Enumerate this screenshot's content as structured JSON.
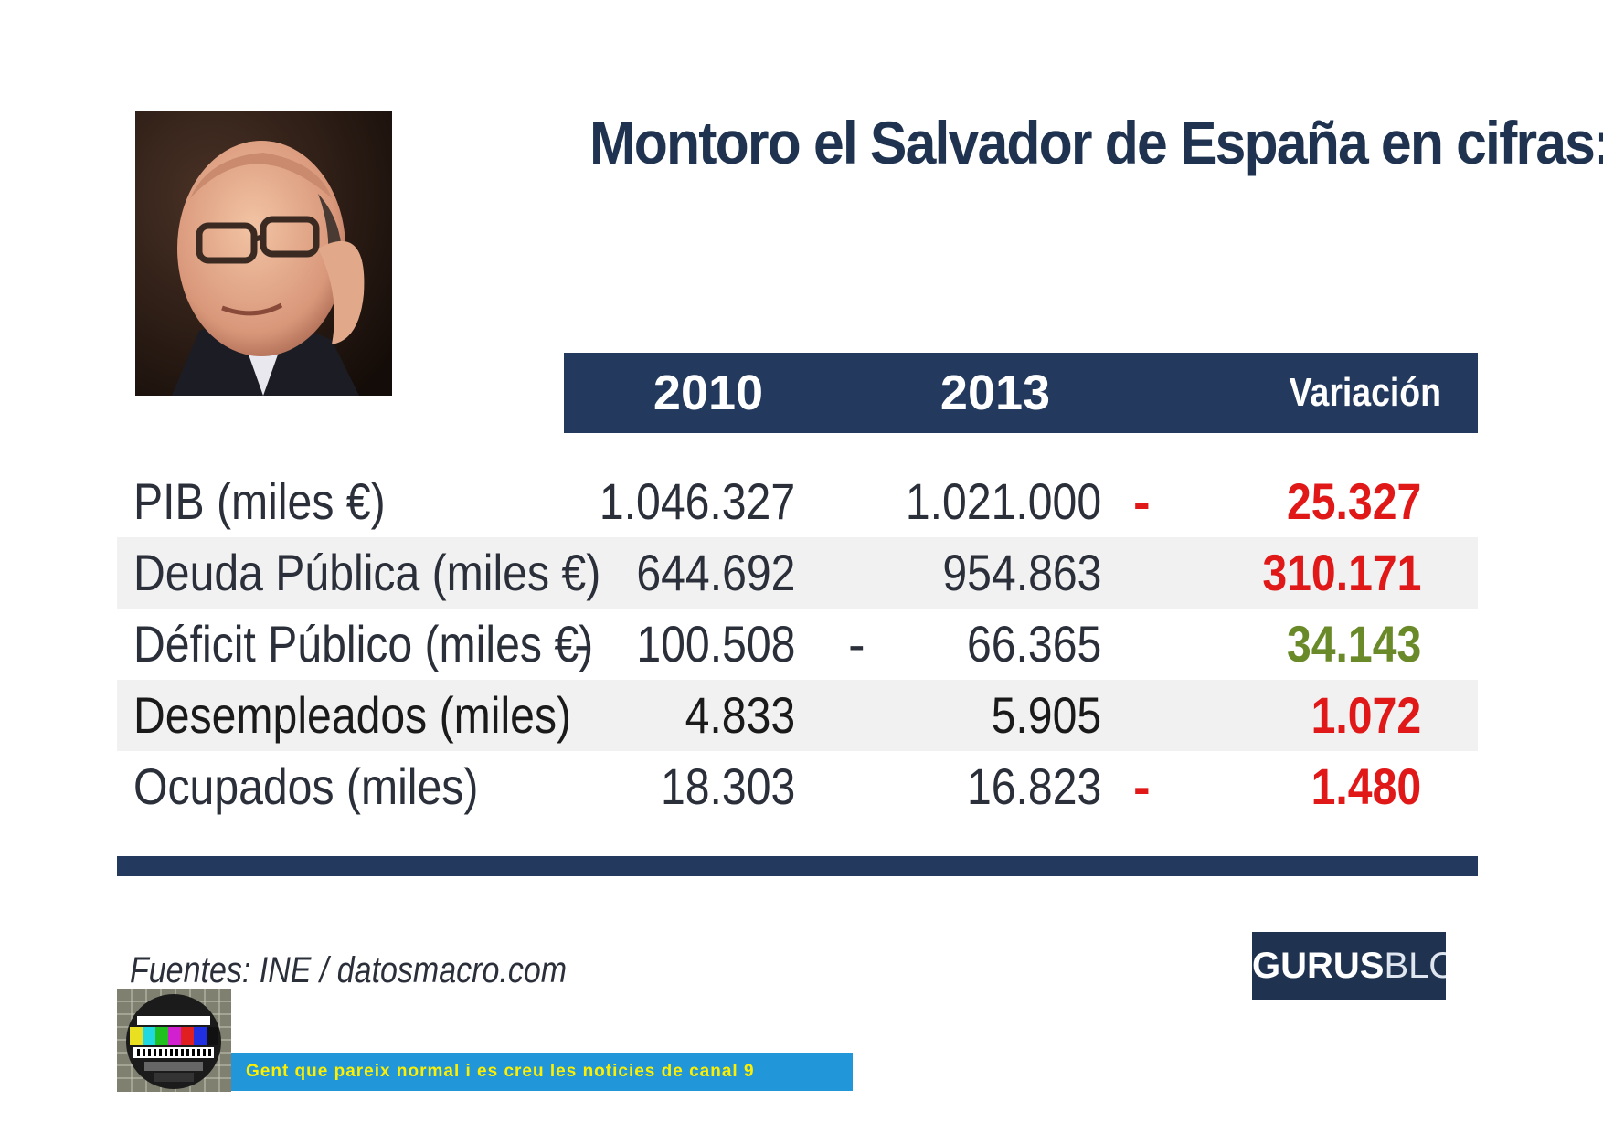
{
  "title": "Montoro el Salvador de España en cifras:",
  "table": {
    "headers": [
      "2010",
      "2013",
      "Variación"
    ],
    "rows": [
      {
        "label": "PIB (miles €)",
        "v2010": "1.046.327",
        "v2013": "1.021.000",
        "variation": "25.327",
        "variation_sign": "-",
        "variation_color": "#e01818"
      },
      {
        "label": "Deuda Pública (miles €)",
        "v2010": "644.692",
        "v2013": "954.863",
        "variation": "310.171",
        "variation_sign": "",
        "variation_color": "#e01818"
      },
      {
        "label": "Déficit Público (miles €)",
        "v2010": "100.508",
        "v2013": "66.365",
        "variation": "34.143",
        "variation_sign": "",
        "variation_color": "#6a8a2a",
        "label_suffix": "-",
        "v2013_sign": "-"
      },
      {
        "label": "Desempleados (miles)",
        "v2010": "4.833",
        "v2013": "5.905",
        "variation": "1.072",
        "variation_sign": "",
        "variation_color": "#e01818"
      },
      {
        "label": "Ocupados (miles)",
        "v2010": "18.303",
        "v2013": "16.823",
        "variation": "1.480",
        "variation_sign": "-",
        "variation_color": "#e01818"
      }
    ]
  },
  "source": "Fuentes: INE / datosmacro.com",
  "logo": {
    "bold": "GURUS",
    "light": "BLOG"
  },
  "caption": "Gent que pareix normal i es creu les noticies de canal 9",
  "colors": {
    "navy": "#233a5e",
    "red": "#e01818",
    "green": "#6a8a2a",
    "caption_bg": "#2196d8",
    "caption_text": "#ffef00"
  }
}
